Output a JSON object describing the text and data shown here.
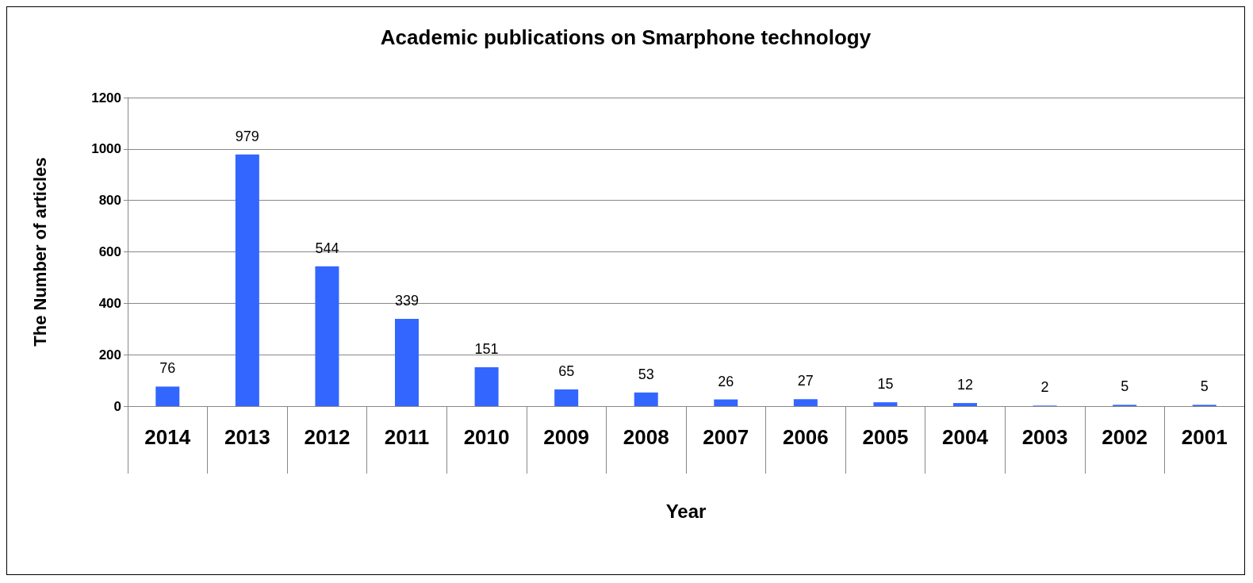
{
  "chart_data": {
    "type": "bar",
    "title": "Academic publications on Smarphone technology",
    "xlabel": "Year",
    "ylabel": "The Number of articles",
    "categories": [
      "2014",
      "2013",
      "2012",
      "2011",
      "2010",
      "2009",
      "2008",
      "2007",
      "2006",
      "2005",
      "2004",
      "2003",
      "2002",
      "2001"
    ],
    "values": [
      76,
      979,
      544,
      339,
      151,
      65,
      53,
      26,
      27,
      15,
      12,
      2,
      5,
      5
    ],
    "color": "#3366ff",
    "ylim": [
      0,
      1200
    ],
    "yticks": [
      0,
      200,
      400,
      600,
      800,
      1000,
      1200
    ],
    "grid": "y",
    "data_labels": true
  }
}
